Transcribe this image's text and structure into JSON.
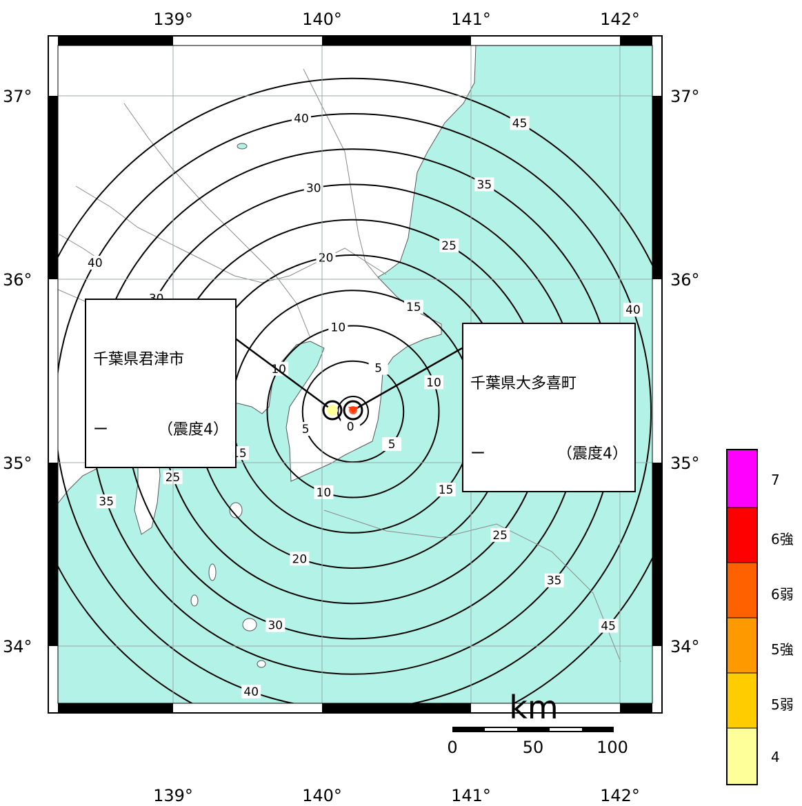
{
  "map": {
    "lon_ticks": [
      "139°",
      "140°",
      "141°",
      "142°"
    ],
    "lat_ticks": [
      "37°",
      "36°",
      "35°",
      "34°"
    ],
    "contour_values": [
      0,
      5,
      10,
      15,
      20,
      25,
      30,
      35,
      40,
      45
    ],
    "colors": {
      "sea": "#b3f2e6",
      "land": "#ffffff",
      "contour": "#000000"
    }
  },
  "callouts": [
    {
      "name": "千葉県君津市",
      "dash": "ー",
      "intensity": "（震度4）"
    },
    {
      "name": "千葉県大多喜町",
      "dash": "ー",
      "intensity": "（震度4）"
    }
  ],
  "scale_bar": {
    "unit": "km",
    "ticks": [
      "0",
      "50",
      "100"
    ]
  },
  "legend": [
    {
      "label": "7",
      "color": "#ff00ff"
    },
    {
      "label": "6強",
      "color": "#ff0000"
    },
    {
      "label": "6弱",
      "color": "#ff6000"
    },
    {
      "label": "5強",
      "color": "#ff9900"
    },
    {
      "label": "5弱",
      "color": "#ffcc00"
    },
    {
      "label": "4",
      "color": "#ffff99"
    }
  ]
}
